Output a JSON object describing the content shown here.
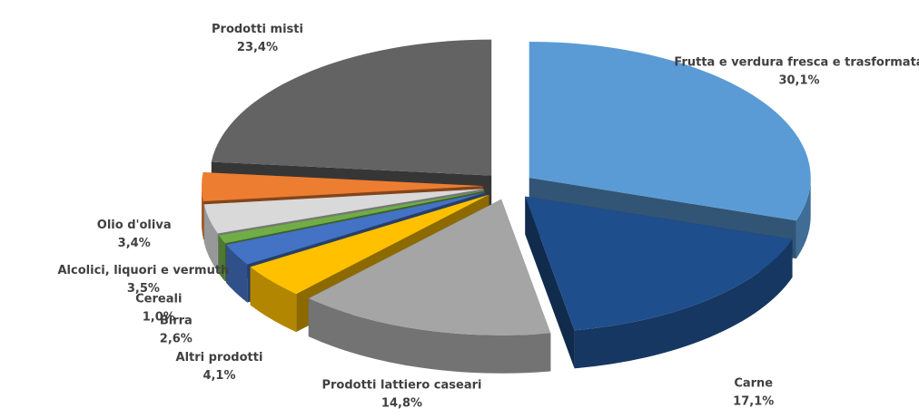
{
  "chart_data": {
    "type": "pie3d",
    "categories": [
      "Frutta e verdura fresca e trasformata",
      "Carne",
      "Prodotti lattiero caseari",
      "Altri prodotti",
      "Birra",
      "Cereali",
      "Alcolici,  liquori e vermuth",
      "Olio d'oliva",
      "Prodotti misti"
    ],
    "values": [
      30.1,
      17.1,
      14.8,
      4.1,
      2.6,
      1.0,
      3.5,
      3.4,
      23.4
    ],
    "value_labels": [
      "30,1%",
      "17,1%",
      "14,8%",
      "4,1%",
      "2,6%",
      "1,0%",
      "3,5%",
      "3,4%",
      "23,4%"
    ],
    "colors": [
      "#5b9bd5",
      "#1f4e8c",
      "#a5a5a5",
      "#ffc000",
      "#4472c4",
      "#70ad47",
      "#d9d9d9",
      "#ed7d31",
      "#636363"
    ]
  }
}
